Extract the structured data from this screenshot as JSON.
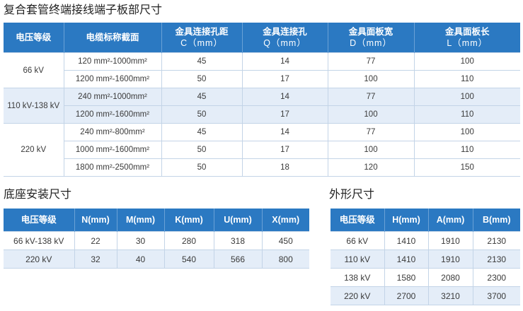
{
  "colors": {
    "header_bg": "#2b79c2",
    "band_bg": "#e4edf8",
    "grid_line": "#c3d4e7",
    "body_text": "#3a3a3a"
  },
  "terminal": {
    "title": "复合套管终端接线端子板部尺寸",
    "headers": [
      {
        "line1": "电压等级"
      },
      {
        "line1": "电缆标称截面"
      },
      {
        "line1": "金具连接孔距",
        "line2": "C（mm）"
      },
      {
        "line1": "金具连接孔",
        "line2": "Q（mm）"
      },
      {
        "line1": "金具面板宽",
        "line2": "D（mm）"
      },
      {
        "line1": "金具面板长",
        "line2": "L（mm）"
      }
    ],
    "groups": [
      {
        "voltage": "66 kV",
        "rows": [
          {
            "section": "120 mm²-1000mm²",
            "c_mm": 45,
            "q_mm": 14,
            "d_mm": 77,
            "l_mm": 100
          },
          {
            "section": "1200 mm²-1600mm²",
            "c_mm": 50,
            "q_mm": 17,
            "d_mm": 100,
            "l_mm": 110
          }
        ]
      },
      {
        "voltage": "110 kV-138 kV",
        "rows": [
          {
            "section": "240 mm²-1000mm²",
            "c_mm": 45,
            "q_mm": 14,
            "d_mm": 77,
            "l_mm": 100
          },
          {
            "section": "1200 mm²-1600mm²",
            "c_mm": 50,
            "q_mm": 17,
            "d_mm": 100,
            "l_mm": 110
          }
        ]
      },
      {
        "voltage": "220 kV",
        "rows": [
          {
            "section": "240 mm²-800mm²",
            "c_mm": 45,
            "q_mm": 14,
            "d_mm": 77,
            "l_mm": 100
          },
          {
            "section": "1000 mm²-1600mm²",
            "c_mm": 50,
            "q_mm": 17,
            "d_mm": 100,
            "l_mm": 110
          },
          {
            "section": "1800 mm²-2500mm²",
            "c_mm": 50,
            "q_mm": 18,
            "d_mm": 120,
            "l_mm": 150
          }
        ]
      }
    ]
  },
  "base": {
    "title": "底座安装尺寸",
    "headers": [
      "电压等级",
      "N(mm)",
      "M(mm)",
      "K(mm)",
      "U(mm)",
      "X(mm)"
    ],
    "rows": [
      {
        "voltage": "66 kV-138 kV",
        "n_mm": 22,
        "m_mm": 30,
        "k_mm": 280,
        "u_mm": 318,
        "x_mm": 450
      },
      {
        "voltage": "220 kV",
        "n_mm": 32,
        "m_mm": 40,
        "k_mm": 540,
        "u_mm": 566,
        "x_mm": 800
      }
    ]
  },
  "outline": {
    "title": "外形尺寸",
    "headers": [
      "电压等级",
      "H(mm)",
      "A(mm)",
      "B(mm)"
    ],
    "rows": [
      {
        "voltage": "66 kV",
        "h_mm": 1410,
        "a_mm": 1910,
        "b_mm": 2130
      },
      {
        "voltage": "110 kV",
        "h_mm": 1410,
        "a_mm": 1910,
        "b_mm": 2130
      },
      {
        "voltage": "138 kV",
        "h_mm": 1580,
        "a_mm": 2080,
        "b_mm": 2300
      },
      {
        "voltage": "220 kV",
        "h_mm": 2700,
        "a_mm": 3210,
        "b_mm": 3700
      }
    ]
  }
}
